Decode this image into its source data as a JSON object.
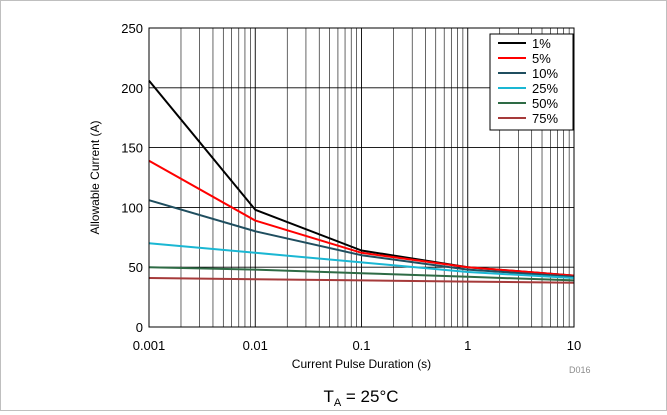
{
  "chart_data": {
    "type": "line",
    "title": "",
    "xlabel": "Current Pulse Duration (s)",
    "ylabel": "Allowable Current (A)",
    "x_scale": "log",
    "xlim": [
      0.001,
      10
    ],
    "ylim": [
      0,
      250
    ],
    "x_ticks": [
      {
        "value": 0.001,
        "label": "0.001"
      },
      {
        "value": 0.01,
        "label": "0.01"
      },
      {
        "value": 0.1,
        "label": "0.1"
      },
      {
        "value": 1,
        "label": "1"
      },
      {
        "value": 10,
        "label": "10"
      }
    ],
    "y_ticks": [
      {
        "value": 0,
        "label": "0"
      },
      {
        "value": 50,
        "label": "50"
      },
      {
        "value": 100,
        "label": "100"
      },
      {
        "value": 150,
        "label": "150"
      },
      {
        "value": 200,
        "label": "200"
      },
      {
        "value": 250,
        "label": "250"
      }
    ],
    "grid": true,
    "legend_position": "top-right",
    "x": [
      0.001,
      0.01,
      0.1,
      1,
      10
    ],
    "series": [
      {
        "name": "1%",
        "color": "#000000",
        "values": [
          206,
          98,
          64,
          50,
          43
        ]
      },
      {
        "name": "5%",
        "color": "#ff0000",
        "values": [
          139,
          89,
          62,
          50,
          43
        ]
      },
      {
        "name": "10%",
        "color": "#1f4e5f",
        "values": [
          106,
          80,
          60,
          48,
          42
        ]
      },
      {
        "name": "25%",
        "color": "#1ab7d3",
        "values": [
          70,
          62,
          54,
          46,
          41
        ]
      },
      {
        "name": "50%",
        "color": "#2e6b45",
        "values": [
          50,
          48,
          45,
          42,
          39
        ]
      },
      {
        "name": "75%",
        "color": "#a63a3a",
        "values": [
          41,
          40,
          39,
          38,
          37
        ]
      }
    ]
  },
  "annotations": {
    "doc_code": "D016",
    "condition_main": "T",
    "condition_sub": "A",
    "condition_rest": " = 25°C"
  }
}
